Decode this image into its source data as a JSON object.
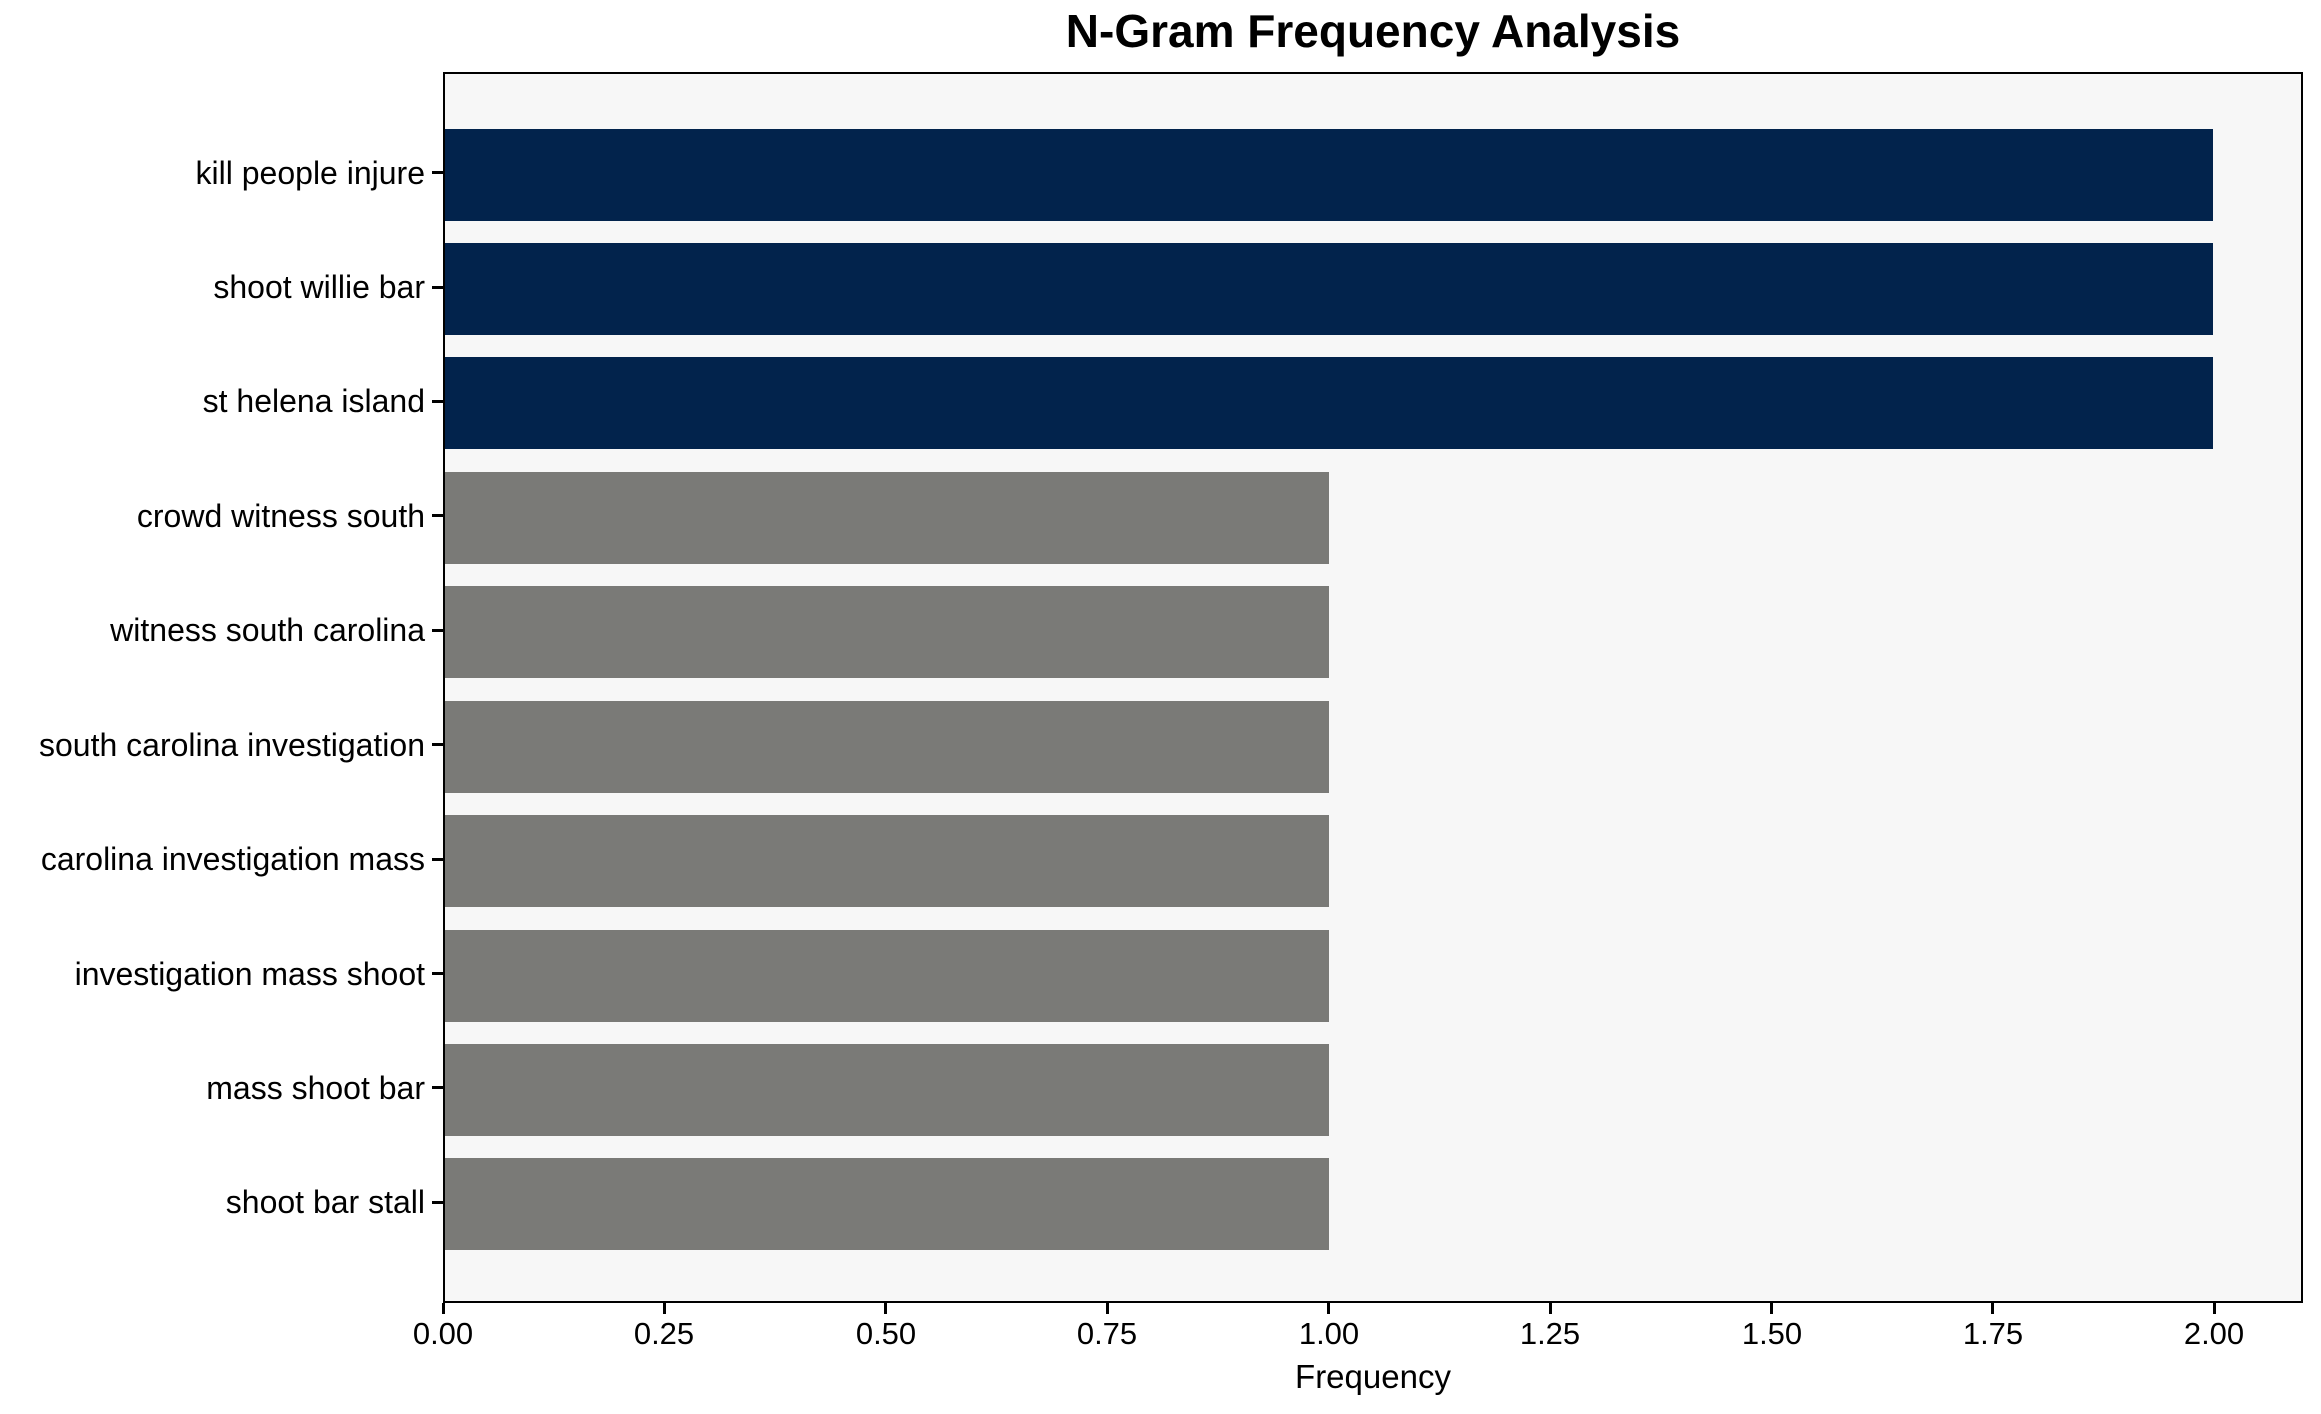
{
  "title": "N-Gram Frequency Analysis",
  "colors": {
    "bar_primary": "#02234c",
    "bar_secondary": "#7a7a77",
    "plot_background": "#f7f7f7",
    "spine": "#000000",
    "text": "#000000",
    "page_background": "#ffffff"
  },
  "chart_data": {
    "type": "bar",
    "orientation": "horizontal",
    "title": "N-Gram Frequency Analysis",
    "xlabel": "Frequency",
    "ylabel": "",
    "categories": [
      "kill people injure",
      "shoot willie bar",
      "st helena island",
      "crowd witness south",
      "witness south carolina",
      "south carolina investigation",
      "carolina investigation mass",
      "investigation mass shoot",
      "mass shoot bar",
      "shoot bar stall"
    ],
    "values": [
      2,
      2,
      2,
      1,
      1,
      1,
      1,
      1,
      1,
      1
    ],
    "bar_colors": [
      "#02234c",
      "#02234c",
      "#02234c",
      "#7a7a77",
      "#7a7a77",
      "#7a7a77",
      "#7a7a77",
      "#7a7a77",
      "#7a7a77",
      "#7a7a77"
    ],
    "xlim": [
      0,
      2.1
    ],
    "xticks": [
      0.0,
      0.25,
      0.5,
      0.75,
      1.0,
      1.25,
      1.5,
      1.75,
      2.0
    ],
    "xtick_labels": [
      "0.00",
      "0.25",
      "0.50",
      "0.75",
      "1.00",
      "1.25",
      "1.50",
      "1.75",
      "2.00"
    ],
    "grid": false,
    "legend": null
  }
}
